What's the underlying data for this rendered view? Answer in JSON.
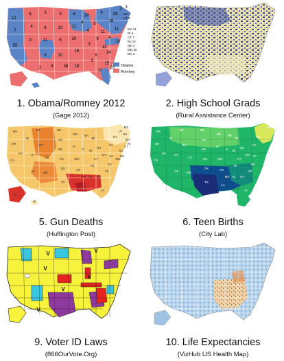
{
  "panels": [
    {
      "title": "1. Obama/Romney 2012",
      "source": "(Gage 2012)",
      "legend": [
        {
          "label": "Obama",
          "color": "#5b84c7"
        },
        {
          "label": "Romney",
          "color": "#ec6e6e"
        }
      ],
      "state_numbers": [
        "55",
        "12",
        "7",
        "6",
        "4",
        "3",
        "3",
        "6",
        "11",
        "5",
        "9",
        "10",
        "5",
        "10",
        "6",
        "11",
        "20",
        "16",
        "18",
        "29",
        "4",
        "3",
        "38",
        "8",
        "9",
        "6",
        "9",
        "11",
        "13",
        "15",
        "16",
        "29",
        "4",
        "11",
        "10",
        "3",
        "3",
        "4",
        "3",
        "12",
        "14",
        "20",
        "8",
        "3"
      ],
      "east_labels": [
        "NH 4",
        "VT 3",
        "MA 11",
        "RI 4",
        "CT 7",
        "NJ 14",
        "DE 3",
        "MD 10",
        "DC 3"
      ]
    },
    {
      "title": "2. High School Grads",
      "source": "(Rural Assistance Center)"
    },
    {
      "title": "5. Gun Deaths",
      "source": "(Huffington Post)",
      "state_abbrevs": [
        "WA",
        "OR",
        "CA",
        "NV",
        "ID",
        "MT",
        "WY",
        "UT",
        "AZ",
        "NM",
        "CO",
        "ND",
        "SD",
        "NE",
        "KS",
        "OK",
        "TX",
        "MN",
        "IA",
        "MO",
        "AR",
        "LA",
        "WI",
        "IL",
        "MI",
        "IN",
        "OH",
        "KY",
        "TN",
        "MS",
        "AL",
        "GA",
        "FL",
        "SC",
        "NC",
        "VA",
        "WV",
        "PA",
        "NY",
        "ME",
        "VT",
        "NH",
        "MA",
        "RI",
        "CT",
        "NJ",
        "DE",
        "MD",
        "AK",
        "HI"
      ]
    },
    {
      "title": "6. Teen Births",
      "source": "(City Lab)",
      "state_abbrevs": [
        "WA",
        "OR",
        "CA",
        "NV",
        "ID",
        "MT",
        "WY",
        "UT",
        "AZ",
        "NM",
        "CO",
        "ND",
        "SD",
        "NE",
        "KS",
        "OK",
        "TX",
        "MN",
        "IA",
        "MO",
        "AR",
        "LA",
        "WI",
        "IL",
        "MI",
        "IN",
        "OH",
        "KY",
        "TN",
        "MS",
        "AL",
        "GA",
        "FL",
        "SC",
        "NC",
        "VA",
        "WV",
        "PA",
        "NY",
        "ME"
      ]
    },
    {
      "title": "9. Voter ID Laws",
      "source": "(866OurVote.Org)",
      "map_markers": [
        "V",
        "V",
        "V",
        "V",
        "V",
        "V"
      ]
    },
    {
      "title": "10. Life Expectancies",
      "source": "(VizHub US Health Map)"
    }
  ]
}
